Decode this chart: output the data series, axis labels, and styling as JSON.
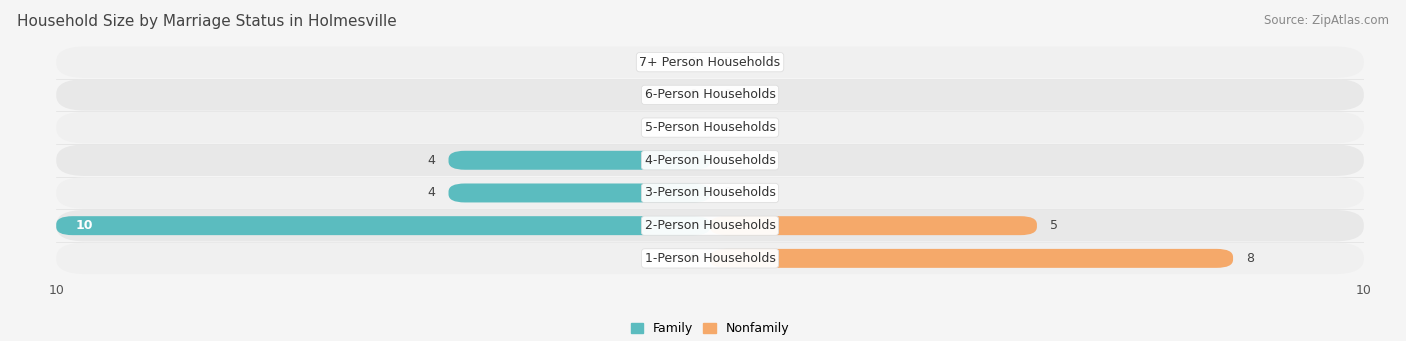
{
  "title": "Household Size by Marriage Status in Holmesville",
  "source": "Source: ZipAtlas.com",
  "categories": [
    "7+ Person Households",
    "6-Person Households",
    "5-Person Households",
    "4-Person Households",
    "3-Person Households",
    "2-Person Households",
    "1-Person Households"
  ],
  "family_values": [
    0,
    0,
    0,
    4,
    4,
    10,
    0
  ],
  "nonfamily_values": [
    0,
    0,
    0,
    0,
    0,
    5,
    8
  ],
  "family_color": "#5bbcbf",
  "nonfamily_color": "#f5a96a",
  "xlim": 10,
  "bar_height": 0.58,
  "row_colors": [
    "#f0f0f0",
    "#e8e8e8"
  ],
  "label_fontsize": 9,
  "title_fontsize": 11,
  "source_fontsize": 8.5,
  "value_fontsize": 9,
  "legend_fontsize": 9,
  "fig_bg": "#f5f5f5"
}
